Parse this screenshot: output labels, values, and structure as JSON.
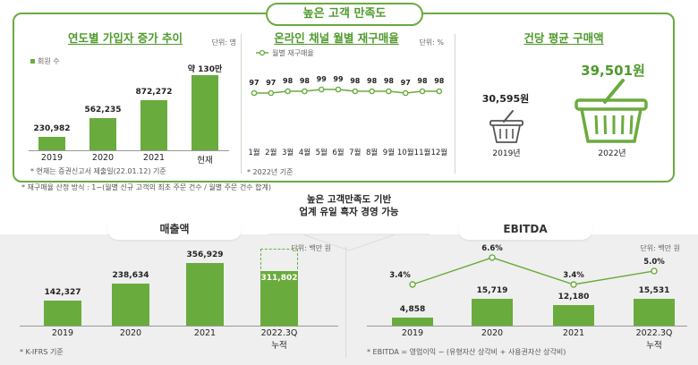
{
  "header": {
    "title": "높은 고객 만족도"
  },
  "colors": {
    "accent": "#6aab3e",
    "accent_text": "#4f9a2c",
    "panel_bg": "#efefef"
  },
  "members": {
    "title": "연도별 가입자 증가 추이",
    "unit": "단위: 명",
    "legend": "회원 수",
    "note": "* 현재는 증권신고서 제출일(22.01.12) 기준",
    "chart_data": {
      "type": "bar",
      "categories": [
        "2019",
        "2020",
        "2021",
        "현재"
      ],
      "values": [
        230982,
        562235,
        872272,
        1300000
      ],
      "labels": [
        "230,982",
        "562,235",
        "872,272",
        "약 130만"
      ],
      "unit": "명"
    }
  },
  "repurchase": {
    "title": "온라인 채널 월별 재구매율",
    "unit": "단위: %",
    "legend": "월별 재구매율",
    "note": "* 2022년 기준",
    "chart_data": {
      "type": "line",
      "categories": [
        "1월",
        "2월",
        "3월",
        "4월",
        "5월",
        "6월",
        "7월",
        "8월",
        "9월",
        "10월",
        "11월",
        "12월"
      ],
      "values": [
        97,
        97,
        98,
        98,
        99,
        99,
        98,
        98,
        98,
        97,
        98,
        98
      ],
      "unit": "%"
    }
  },
  "basket": {
    "title": "건당 평균 구매액",
    "items": [
      {
        "value": "30,595원",
        "year": "2019년"
      },
      {
        "value": "39,501원",
        "year": "2022년"
      }
    ]
  },
  "footnote": "* 재구매율 산정 방식 : 1−(월별 신규 고객의 최초 주문 건수 / 월별 주문 건수 합계)",
  "center_text": {
    "line1": "높은 고객만족도 기반",
    "line2": "업계 유일 흑자 경영 가능"
  },
  "revenue": {
    "title": "매출액",
    "unit": "단위: 백만 원",
    "note": "* K-IFRS 기준",
    "chart_data": {
      "type": "bar",
      "categories": [
        "2019",
        "2020",
        "2021",
        "2022.3Q 누적"
      ],
      "cat_line1": [
        "2019",
        "2020",
        "2021",
        "2022.3Q"
      ],
      "cat_line2": [
        "",
        "",
        "",
        "누적"
      ],
      "values": [
        142327,
        238634,
        356929,
        311802
      ],
      "labels": [
        "142,327",
        "238,634",
        "356,929",
        "311,802"
      ],
      "unit": "백만 원"
    }
  },
  "ebitda": {
    "title": "EBITDA",
    "unit": "단위: 백만 원",
    "note": "* EBITDA = 영업이익 − (유형자산 상각비 + 사용권자산 상각비)",
    "chart_data": {
      "type": "bar",
      "categories": [
        "2019",
        "2020",
        "2021",
        "2022.3Q 누적"
      ],
      "cat_line1": [
        "2019",
        "2020",
        "2021",
        "2022.3Q"
      ],
      "cat_line2": [
        "",
        "",
        "",
        "누적"
      ],
      "values": [
        4858,
        15719,
        12180,
        15531
      ],
      "labels": [
        "4,858",
        "15,719",
        "12,180",
        "15,531"
      ],
      "margin_values": [
        3.4,
        6.6,
        3.4,
        5.0
      ],
      "margin_labels": [
        "3.4%",
        "6.6%",
        "3.4%",
        "5.0%"
      ],
      "unit": "백만 원"
    }
  }
}
